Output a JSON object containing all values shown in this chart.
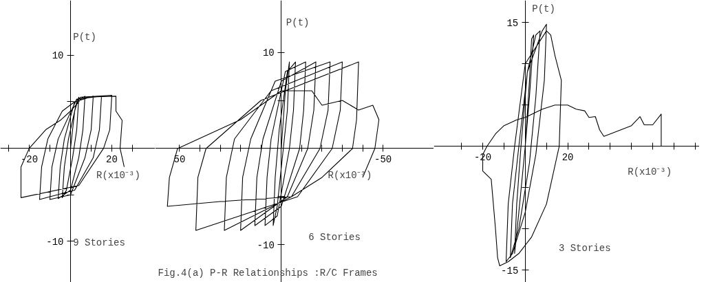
{
  "chart_data": [
    {
      "type": "line",
      "xlabel": "R(x10⁻³)",
      "ylabel": "P(t)",
      "annotations": [
        "9 Stories"
      ],
      "xlim": [
        -34,
        41
      ],
      "ylim": [
        -14.4,
        15.9
      ],
      "xticks": [
        {
          "value": -30,
          "label": null
        },
        -20,
        {
          "value": -10,
          "label": null
        },
        {
          "value": 10,
          "label": null
        },
        20,
        {
          "value": 30,
          "label": null
        }
      ],
      "yticks": [
        -10,
        {
          "value": -5,
          "label": null
        },
        {
          "value": 5,
          "label": null
        },
        10
      ],
      "series": [
        {
          "color": "#000000",
          "x": [
            0,
            2,
            4,
            3,
            1,
            -2,
            -4,
            -3,
            -1,
            3,
            7,
            6,
            4,
            0,
            -6,
            -5,
            -3,
            2,
            11,
            10,
            7,
            0,
            -10,
            -9,
            -6,
            3,
            15,
            14,
            11,
            2,
            -15,
            -14,
            -11,
            -4,
            5,
            20,
            19,
            16,
            4,
            -24,
            -24,
            -20,
            -12,
            -5,
            0,
            6,
            22,
            22,
            25,
            24,
            26
          ],
          "values": [
            0,
            4,
            5.5,
            2,
            -1,
            -4.5,
            -5.3,
            -2,
            1,
            5,
            5.6,
            2,
            -1,
            -4.5,
            -5.4,
            -2,
            1,
            5,
            5.6,
            2,
            -1,
            -5,
            -5.5,
            -2,
            1,
            5.3,
            5.6,
            2,
            -1,
            -4.5,
            -5.5,
            -2,
            1,
            4,
            5.5,
            5.7,
            2,
            0,
            -4,
            -5.3,
            -2,
            0,
            2,
            3,
            4,
            5.5,
            5.6,
            4,
            3,
            0,
            -2
          ]
        }
      ]
    },
    {
      "type": "line",
      "xlabel": "R(x10⁻³)",
      "ylabel": "P(t)",
      "annotations": [
        "6 Stories",
        "Fig.4(a)  P-R Relationships :R/C Frames"
      ],
      "xlim": [
        62,
        -75
      ],
      "ylim": [
        -13.9,
        15.4
      ],
      "xticks": [
        50,
        {
          "value": 40,
          "label": null
        },
        {
          "value": 30,
          "label": null
        },
        {
          "value": 20,
          "label": null
        },
        {
          "value": 10,
          "label": null
        },
        {
          "value": -10,
          "label": null
        },
        {
          "value": -20,
          "label": null
        },
        {
          "value": -30,
          "label": null
        },
        {
          "value": -40,
          "label": null
        },
        -50
      ],
      "yticks": [
        -10,
        {
          "value": -5,
          "label": null
        },
        {
          "value": 5,
          "label": null
        },
        10
      ],
      "series": [
        {
          "color": "#000000",
          "x": [
            0,
            -2,
            -4,
            -3,
            -1,
            2,
            4,
            3,
            1,
            -3,
            -7,
            -6,
            -4,
            2,
            8,
            7,
            5,
            -2,
            -12,
            -11,
            -9,
            0,
            13,
            12,
            9,
            0,
            -17,
            -16,
            -13,
            -3,
            20,
            19,
            15,
            3,
            -24,
            -23,
            -19,
            -5,
            28,
            27,
            23,
            5,
            -30,
            -29,
            -25,
            -8,
            42,
            41,
            37,
            10,
            -38,
            -37,
            -35,
            -20,
            -5,
            30,
            56,
            55,
            51,
            20,
            0,
            -15,
            -20,
            -30,
            -38,
            -45,
            -48,
            -46,
            -40
          ],
          "values": [
            0,
            6,
            9,
            4,
            0,
            -6,
            -8,
            -3,
            2,
            8,
            9,
            4,
            0,
            -7,
            -8,
            -3,
            1,
            8,
            9,
            4,
            0,
            -6,
            -8,
            -3,
            1,
            7,
            9,
            4,
            0,
            -5,
            -8.5,
            -3,
            1,
            7,
            9,
            4,
            0,
            -5,
            -8.5,
            -3,
            1,
            6,
            9,
            4,
            0,
            -5,
            -8.5,
            -3,
            0,
            5,
            9,
            3,
            0,
            -3,
            -5,
            -5.5,
            -6,
            -3,
            0,
            3,
            6,
            6,
            4.5,
            5,
            4,
            4.5,
            3,
            0,
            -3
          ]
        }
      ]
    },
    {
      "type": "line",
      "xlabel": "R(x10⁻³)",
      "ylabel": "P(t)",
      "annotations": [
        "3 Stories"
      ],
      "xlim": [
        -43,
        82
      ],
      "ylim": [
        -16.5,
        17.7
      ],
      "xticks": [
        {
          "value": -30,
          "label": null
        },
        -20,
        {
          "value": -10,
          "label": null
        },
        {
          "value": 10,
          "label": null
        },
        20,
        {
          "value": 30,
          "label": null
        },
        {
          "value": 40,
          "label": null
        },
        {
          "value": 50,
          "label": null
        },
        {
          "value": 60,
          "label": null
        },
        {
          "value": 70,
          "label": null
        },
        {
          "value": 80,
          "label": null
        }
      ],
      "yticks": [
        -15,
        {
          "value": -10,
          "label": null
        },
        {
          "value": -5,
          "label": null
        },
        {
          "value": 5,
          "label": null
        },
        {
          "value": 10,
          "label": null
        },
        15
      ],
      "series": [
        {
          "color": "#000000",
          "x": [
            0,
            2,
            3,
            4,
            2,
            0,
            -3,
            -5,
            -4,
            -2,
            1,
            5,
            7,
            5,
            2,
            -3,
            -7,
            -6,
            -3,
            1,
            8,
            10,
            9,
            5,
            0,
            -6,
            -9,
            -8,
            -5,
            0,
            10,
            12,
            14,
            17,
            16,
            10,
            3,
            -3,
            -8,
            -12,
            -13,
            -14,
            -16,
            -20,
            -20,
            -18,
            -14,
            -10,
            -4,
            0,
            8,
            14,
            20,
            24,
            28,
            30,
            33,
            35,
            37,
            40,
            45,
            50,
            54,
            56,
            60,
            64,
            64
          ],
          "values": [
            0,
            8,
            13,
            13.5,
            6,
            0,
            -8,
            -13,
            -7,
            0,
            9,
            13.5,
            14,
            6,
            -2,
            -10,
            -13.5,
            -7,
            0,
            9,
            14,
            14.8,
            8,
            -1,
            -8,
            -13,
            -14,
            -7,
            0,
            10,
            14,
            13.5,
            11,
            8,
            0,
            -7,
            -11,
            -13,
            -14,
            -14.5,
            -13.5,
            -10,
            -4,
            -3,
            -1,
            0,
            1.5,
            2.5,
            3.2,
            3.5,
            4.5,
            5,
            5,
            4.5,
            4.3,
            3.5,
            3.6,
            2,
            1.2,
            1.5,
            2,
            2.5,
            3.6,
            2.6,
            2.6,
            3.9,
            0
          ]
        }
      ]
    }
  ]
}
